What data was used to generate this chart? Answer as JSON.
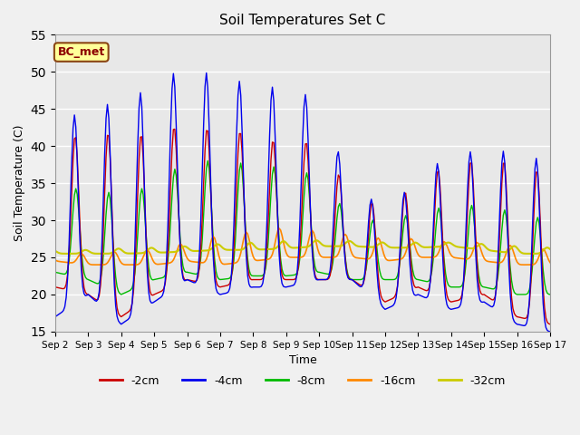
{
  "title": "Soil Temperatures Set C",
  "xlabel": "Time",
  "ylabel": "Soil Temperature (C)",
  "ylim": [
    15,
    55
  ],
  "annotation": "BC_met",
  "series_colors": {
    "-2cm": "#cc0000",
    "-4cm": "#0000ee",
    "-8cm": "#00bb00",
    "-16cm": "#ff8800",
    "-32cm": "#cccc00"
  },
  "x_tick_labels": [
    "Sep 2",
    "Sep 3",
    "Sep 4",
    "Sep 5",
    "Sep 6",
    "Sep 7",
    "Sep 8",
    "Sep 9",
    "Sep 10",
    "Sep 11",
    "Sep 12",
    "Sep 13",
    "Sep 14",
    "Sep 15",
    "Sep 16",
    "Sep 17"
  ],
  "bg_color": "#e8e8e8",
  "grid_color": "#ffffff",
  "fig_bg": "#f0f0f0"
}
